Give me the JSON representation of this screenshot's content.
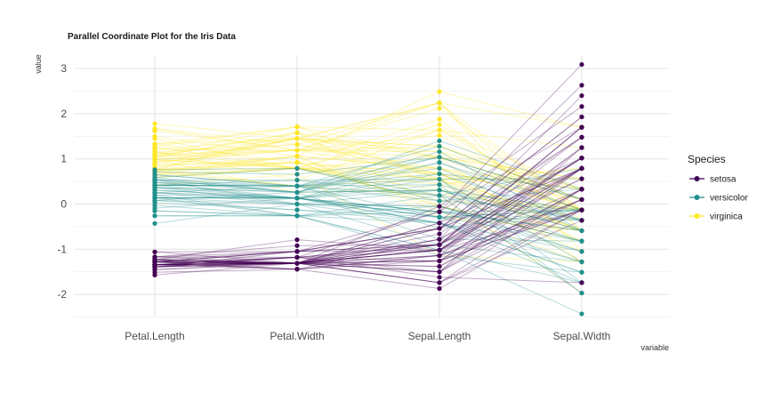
{
  "chart_data": {
    "type": "line",
    "title": "Parallel Coordinate Plot for the Iris Data",
    "xlabel": "variable",
    "ylabel": "value",
    "categories": [
      "Petal.Length",
      "Petal.Width",
      "Sepal.Length",
      "Sepal.Width"
    ],
    "ylim": [
      -2.5,
      3.3
    ],
    "yticks": [
      -2,
      -1,
      0,
      1,
      2,
      3
    ],
    "grid": true,
    "legend": {
      "title": "Species",
      "position": "right",
      "entries": [
        "setosa",
        "versicolor",
        "virginica"
      ]
    },
    "colors": {
      "setosa": "#440154",
      "versicolor": "#21908C",
      "virginica": "#FDE725"
    },
    "series": [
      {
        "name": "setosa",
        "lines": [
          [
            -1.34,
            -1.31,
            -0.9,
            1.02
          ],
          [
            -1.34,
            -1.31,
            -1.14,
            -0.13
          ],
          [
            -1.39,
            -1.31,
            -1.38,
            0.33
          ],
          [
            -1.28,
            -1.31,
            -1.5,
            0.1
          ],
          [
            -1.34,
            -1.31,
            -1.02,
            1.25
          ],
          [
            -1.17,
            -1.05,
            -0.54,
            1.93
          ],
          [
            -1.34,
            -1.18,
            -1.5,
            0.79
          ],
          [
            -1.28,
            -1.31,
            -1.02,
            0.79
          ],
          [
            -1.34,
            -1.31,
            -1.74,
            -0.36
          ],
          [
            -1.28,
            -1.44,
            -1.14,
            0.1
          ],
          [
            -1.28,
            -1.31,
            -0.54,
            1.48
          ],
          [
            -1.23,
            -1.31,
            -1.26,
            0.79
          ],
          [
            -1.34,
            -1.44,
            -1.26,
            -0.13
          ],
          [
            -1.51,
            -1.44,
            -1.87,
            -0.13
          ],
          [
            -1.45,
            -1.31,
            -0.05,
            2.16
          ],
          [
            -1.28,
            -1.05,
            -0.17,
            3.09
          ],
          [
            -1.39,
            -1.05,
            -0.54,
            1.93
          ],
          [
            -1.34,
            -1.18,
            -0.9,
            1.02
          ],
          [
            -1.17,
            -1.18,
            -0.17,
            1.7
          ],
          [
            -1.28,
            -1.18,
            -0.9,
            1.7
          ],
          [
            -1.17,
            -1.31,
            -0.54,
            0.79
          ],
          [
            -1.28,
            -1.05,
            -0.9,
            1.48
          ],
          [
            -1.57,
            -1.31,
            -1.5,
            1.25
          ],
          [
            -1.17,
            -0.92,
            -0.9,
            0.56
          ],
          [
            -1.06,
            -1.31,
            -1.26,
            0.79
          ],
          [
            -1.23,
            -1.31,
            -1.02,
            -0.13
          ],
          [
            -1.23,
            -1.05,
            -1.02,
            0.79
          ],
          [
            -1.28,
            -1.31,
            -0.78,
            1.02
          ],
          [
            -1.34,
            -1.31,
            -0.78,
            0.79
          ],
          [
            -1.23,
            -1.31,
            -1.38,
            0.33
          ],
          [
            -1.23,
            -1.31,
            -1.26,
            0.1
          ],
          [
            -1.28,
            -1.05,
            -0.54,
            0.79
          ],
          [
            -1.28,
            -1.44,
            -0.78,
            2.4
          ],
          [
            -1.34,
            -1.31,
            -0.42,
            2.63
          ],
          [
            -1.28,
            -1.31,
            -1.14,
            0.1
          ],
          [
            -1.45,
            -1.31,
            -1.02,
            0.33
          ],
          [
            -1.39,
            -1.31,
            -0.42,
            1.02
          ],
          [
            -1.34,
            -1.44,
            -1.14,
            1.25
          ],
          [
            -1.39,
            -1.31,
            -1.74,
            -0.13
          ],
          [
            -1.28,
            -1.31,
            -0.9,
            0.79
          ],
          [
            -1.39,
            -1.18,
            -1.02,
            1.02
          ],
          [
            -1.39,
            -1.18,
            -1.62,
            -1.74
          ],
          [
            -1.39,
            -1.31,
            -1.74,
            0.33
          ],
          [
            -1.23,
            -0.79,
            -1.02,
            1.02
          ],
          [
            -1.06,
            -1.05,
            -0.9,
            1.7
          ],
          [
            -1.34,
            -1.18,
            -1.26,
            -0.13
          ],
          [
            -1.23,
            -1.31,
            -0.9,
            1.7
          ],
          [
            -1.34,
            -1.31,
            -1.5,
            0.33
          ],
          [
            -1.28,
            -1.31,
            -0.66,
            1.48
          ],
          [
            -1.34,
            -1.31,
            -1.02,
            0.56
          ]
        ]
      },
      {
        "name": "versicolor",
        "lines": [
          [
            0.54,
            0.26,
            1.4,
            0.33
          ],
          [
            0.42,
            0.4,
            0.67,
            0.33
          ],
          [
            0.65,
            0.4,
            1.28,
            0.1
          ],
          [
            0.14,
            0.13,
            -0.42,
            -1.74
          ],
          [
            0.48,
            0.4,
            0.79,
            -0.59
          ],
          [
            0.42,
            0.13,
            -0.17,
            -0.59
          ],
          [
            0.54,
            0.53,
            0.55,
            0.56
          ],
          [
            -0.26,
            -0.26,
            -1.14,
            -1.51
          ],
          [
            0.48,
            0.13,
            0.92,
            -0.36
          ],
          [
            0.08,
            0.26,
            -0.78,
            -0.82
          ],
          [
            -0.15,
            -0.26,
            -1.02,
            -2.43
          ],
          [
            0.25,
            0.4,
            0.07,
            -0.13
          ],
          [
            0.14,
            -0.26,
            0.19,
            -1.97
          ],
          [
            0.54,
            0.26,
            0.31,
            -0.36
          ],
          [
            -0.09,
            0.13,
            -0.29,
            -0.36
          ],
          [
            0.37,
            0.26,
            1.04,
            0.1
          ],
          [
            0.42,
            0.4,
            -0.29,
            -0.13
          ],
          [
            0.2,
            -0.26,
            -0.05,
            -0.82
          ],
          [
            0.42,
            0.4,
            0.43,
            -1.97
          ],
          [
            0.08,
            -0.13,
            -0.29,
            -1.28
          ],
          [
            0.59,
            0.79,
            0.07,
            0.33
          ],
          [
            0.14,
            0.13,
            0.31,
            -0.59
          ],
          [
            0.65,
            0.4,
            0.55,
            -1.28
          ],
          [
            0.54,
            0.0,
            0.31,
            -0.59
          ],
          [
            0.31,
            0.13,
            0.67,
            -0.36
          ],
          [
            0.37,
            0.26,
            0.92,
            -0.13
          ],
          [
            0.59,
            0.26,
            1.16,
            -0.59
          ],
          [
            0.71,
            0.66,
            1.04,
            -0.13
          ],
          [
            0.42,
            0.4,
            0.19,
            -0.36
          ],
          [
            -0.15,
            -0.26,
            -0.17,
            -1.05
          ],
          [
            0.03,
            -0.13,
            -0.42,
            -1.51
          ],
          [
            -0.03,
            -0.26,
            -0.42,
            -1.51
          ],
          [
            0.08,
            0.0,
            -0.05,
            -0.82
          ],
          [
            0.76,
            0.79,
            0.19,
            -0.82
          ],
          [
            0.42,
            0.4,
            -0.54,
            -0.13
          ],
          [
            0.42,
            0.53,
            0.19,
            0.79
          ],
          [
            0.54,
            0.4,
            1.04,
            0.1
          ],
          [
            0.37,
            0.13,
            0.55,
            -1.74
          ],
          [
            0.14,
            0.13,
            -0.29,
            -0.13
          ],
          [
            0.14,
            0.13,
            -0.42,
            -1.28
          ],
          [
            0.37,
            0.0,
            -0.42,
            -1.05
          ],
          [
            0.48,
            0.26,
            0.31,
            -0.13
          ],
          [
            0.14,
            0.0,
            -0.05,
            -1.05
          ],
          [
            -0.26,
            -0.26,
            -1.02,
            -1.74
          ],
          [
            0.25,
            0.13,
            -0.29,
            -0.82
          ],
          [
            0.25,
            0.0,
            -0.17,
            -0.13
          ],
          [
            0.25,
            0.13,
            -0.17,
            -0.36
          ],
          [
            0.31,
            0.13,
            0.43,
            -0.36
          ],
          [
            -0.43,
            0.0,
            -0.9,
            -1.28
          ],
          [
            0.2,
            0.13,
            -0.17,
            -0.59
          ]
        ]
      },
      {
        "name": "virginica",
        "lines": [
          [
            1.27,
            1.71,
            0.55,
            0.56
          ],
          [
            0.76,
            0.92,
            -0.05,
            -0.82
          ],
          [
            1.22,
            1.19,
            1.52,
            -0.13
          ],
          [
            1.05,
            0.79,
            0.55,
            -0.36
          ],
          [
            1.16,
            1.32,
            0.79,
            -0.13
          ],
          [
            1.62,
            1.19,
            2.12,
            -0.13
          ],
          [
            0.42,
            0.66,
            -1.14,
            -1.28
          ],
          [
            1.45,
            0.79,
            1.76,
            -0.36
          ],
          [
            1.16,
            0.79,
            1.04,
            -1.28
          ],
          [
            1.33,
            1.71,
            1.64,
            1.25
          ],
          [
            0.76,
            1.06,
            0.79,
            0.33
          ],
          [
            0.88,
            0.92,
            0.67,
            -0.82
          ],
          [
            0.99,
            1.19,
            1.16,
            -0.13
          ],
          [
            0.71,
            1.06,
            -0.17,
            -1.28
          ],
          [
            0.76,
            1.58,
            -0.05,
            -0.59
          ],
          [
            0.88,
            1.45,
            0.67,
            0.33
          ],
          [
            0.99,
            0.79,
            0.79,
            -0.13
          ],
          [
            1.67,
            1.32,
            2.24,
            1.7
          ],
          [
            1.78,
            1.45,
            2.24,
            -1.05
          ],
          [
            0.71,
            0.4,
            0.19,
            -1.97
          ],
          [
            1.1,
            1.45,
            1.28,
            0.33
          ],
          [
            0.65,
            1.06,
            -0.29,
            -0.59
          ],
          [
            1.67,
            1.19,
            2.24,
            -0.59
          ],
          [
            0.65,
            0.79,
            0.55,
            -0.82
          ],
          [
            1.1,
            1.19,
            1.04,
            0.56
          ],
          [
            1.27,
            0.79,
            1.64,
            0.33
          ],
          [
            0.59,
            0.79,
            0.43,
            -0.59
          ],
          [
            0.65,
            0.79,
            0.31,
            -0.13
          ],
          [
            1.05,
            1.19,
            0.67,
            -0.59
          ],
          [
            1.16,
            0.53,
            1.64,
            -0.13
          ],
          [
            1.33,
            0.92,
            1.88,
            -0.59
          ],
          [
            1.5,
            1.06,
            2.49,
            1.7
          ],
          [
            1.05,
            1.32,
            0.67,
            -0.59
          ],
          [
            0.76,
            0.4,
            0.55,
            -0.59
          ],
          [
            0.99,
            0.26,
            0.31,
            -1.05
          ],
          [
            1.33,
            1.45,
            2.24,
            -0.13
          ],
          [
            1.05,
            1.58,
            0.55,
            0.79
          ],
          [
            0.99,
            0.79,
            0.67,
            0.1
          ],
          [
            0.59,
            0.79,
            0.19,
            -0.13
          ],
          [
            0.93,
            1.19,
            1.28,
            0.1
          ],
          [
            1.05,
            1.58,
            1.04,
            0.1
          ],
          [
            0.76,
            1.45,
            1.28,
            0.1
          ],
          [
            0.76,
            0.92,
            -0.05,
            -0.82
          ],
          [
            1.22,
            1.45,
            1.16,
            0.33
          ],
          [
            1.1,
            1.71,
            1.04,
            0.56
          ],
          [
            0.82,
            1.45,
            1.04,
            -0.13
          ],
          [
            0.71,
            0.92,
            0.55,
            -1.28
          ],
          [
            0.82,
            1.06,
            0.79,
            -0.13
          ],
          [
            0.93,
            1.45,
            0.43,
            0.79
          ],
          [
            0.76,
            0.79,
            0.07,
            -0.13
          ]
        ]
      }
    ]
  }
}
